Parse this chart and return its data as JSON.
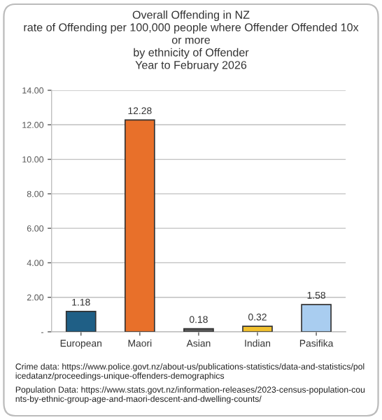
{
  "chart_data": {
    "type": "bar",
    "title": "Overall Offending in NZ\nrate of Offending per 100,000 people where Offender Offended 10x\nor more\nby ethnicity of Offender\nYear to February 2026",
    "categories": [
      "European",
      "Maori",
      "Asian",
      "Indian",
      "Pasifika"
    ],
    "values": [
      1.18,
      12.28,
      0.18,
      0.32,
      1.58
    ],
    "colors": [
      "#1f5f86",
      "#e8702a",
      "#5a5a5a",
      "#f2c12e",
      "#a9cdf0"
    ],
    "ylim": [
      0,
      14
    ],
    "yticks": [
      {
        "value": 0,
        "label": "-"
      },
      {
        "value": 2,
        "label": "2.00"
      },
      {
        "value": 4,
        "label": "4.00"
      },
      {
        "value": 6,
        "label": "6.00"
      },
      {
        "value": 8,
        "label": "8.00"
      },
      {
        "value": 10,
        "label": "10.00"
      },
      {
        "value": 12,
        "label": "12.00"
      },
      {
        "value": 14,
        "label": "14.00"
      }
    ],
    "grid": "y",
    "legend": false,
    "data_labels": true,
    "annotations": [
      "Crime data: https://www.police.govt.nz/about-us/publications-statistics/data-and-statistics/policedatanz/proceedings-unique-offenders-demographics",
      "Population Data: https://www.stats.govt.nz/information-releases/2023-census-population-counts-by-ethnic-group-age-and-maori-descent-and-dwelling-counts/"
    ]
  }
}
